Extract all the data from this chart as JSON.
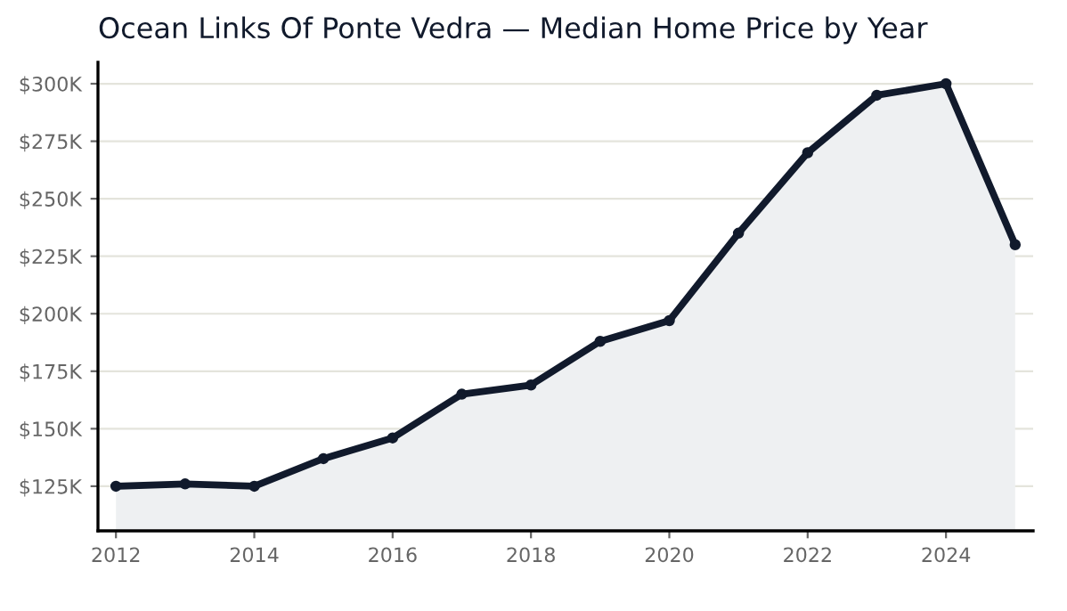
{
  "chart_data": {
    "type": "area",
    "title": "Ocean Links Of Ponte Vedra — Median Home Price by Year",
    "x": [
      2012,
      2013,
      2014,
      2015,
      2016,
      2017,
      2018,
      2019,
      2020,
      2021,
      2022,
      2023,
      2024,
      2025
    ],
    "series": [
      {
        "color": "#111a2c",
        "values": [
          125,
          126,
          125,
          137,
          146,
          165,
          169,
          188,
          197,
          235,
          270,
          295,
          300,
          230
        ]
      }
    ],
    "xlim": [
      2011.74,
      2025.26
    ],
    "xticks": [
      2012,
      2014,
      2016,
      2018,
      2020,
      2022,
      2024
    ],
    "ylim": [
      105.6,
      309.3
    ],
    "yticks": [
      {
        "value": 125,
        "label": "$125K"
      },
      {
        "value": 150,
        "label": "$150K"
      },
      {
        "value": 175,
        "label": "$175K"
      },
      {
        "value": 200,
        "label": "$200K"
      },
      {
        "value": 225,
        "label": "$225K"
      },
      {
        "value": 250,
        "label": "$250K"
      },
      {
        "value": 275,
        "label": "$275K"
      },
      {
        "value": 300,
        "label": "$300K"
      }
    ],
    "grid": "y",
    "marker": "circle",
    "line_style": "solid"
  }
}
